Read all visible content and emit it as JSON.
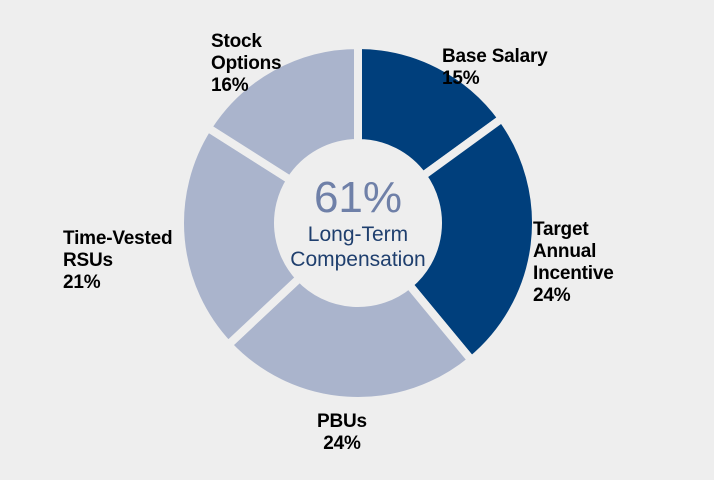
{
  "chart_data": {
    "type": "pie",
    "center": {
      "value": "61%",
      "caption_line1": "Long-Term",
      "caption_line2": "Compensation"
    },
    "slices": [
      {
        "label_lines": [
          "Base Salary"
        ],
        "pct_text": "15%",
        "value": 15,
        "color": "#003f7c"
      },
      {
        "label_lines": [
          "Target",
          "Annual",
          "Incentive"
        ],
        "pct_text": "24%",
        "value": 24,
        "color": "#003f7c"
      },
      {
        "label_lines": [
          "PBUs"
        ],
        "pct_text": "24%",
        "value": 24,
        "color": "#aab4cc"
      },
      {
        "label_lines": [
          "Time-Vested",
          "RSUs"
        ],
        "pct_text": "21%",
        "value": 21,
        "color": "#aab4cc"
      },
      {
        "label_lines": [
          "Stock",
          "Options"
        ],
        "pct_text": "16%",
        "value": 16,
        "color": "#aab4cc"
      }
    ]
  }
}
